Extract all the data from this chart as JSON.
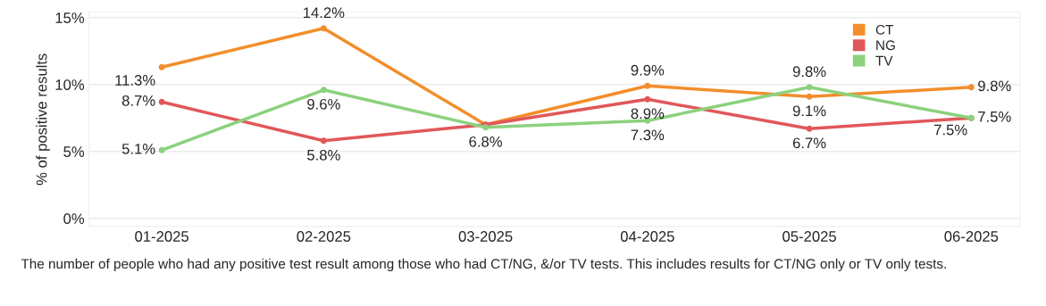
{
  "chart_data": {
    "type": "line",
    "ylabel": "% of positive results",
    "categories": [
      "01-2025",
      "02-2025",
      "03-2025",
      "04-2025",
      "05-2025",
      "06-2025"
    ],
    "series": [
      {
        "name": "CT",
        "color": "#f28e2b",
        "values": [
          11.3,
          14.2,
          7.0,
          9.9,
          9.1,
          9.8
        ],
        "value_labels": [
          "11.3%",
          "14.2%",
          null,
          "9.9%",
          "9.1%",
          "9.8%"
        ]
      },
      {
        "name": "NG",
        "color": "#e15759",
        "values": [
          8.7,
          5.8,
          7.0,
          8.9,
          6.7,
          7.5
        ],
        "value_labels": [
          "8.7%",
          "5.8%",
          null,
          "8.9%",
          "6.7%",
          "7.5%"
        ]
      },
      {
        "name": "TV",
        "color": "#8cd17d",
        "values": [
          5.1,
          9.6,
          6.8,
          7.3,
          9.8,
          7.5
        ],
        "value_labels": [
          "5.1%",
          "9.6%",
          "6.8%",
          "7.3%",
          "9.8%",
          "7.5%"
        ]
      }
    ],
    "ylim": [
      -0.6,
      15.4
    ],
    "yticks": [
      {
        "value": 0,
        "label": "0%"
      },
      {
        "value": 5,
        "label": "5%"
      },
      {
        "value": 10,
        "label": "10%"
      },
      {
        "value": 15,
        "label": "15%"
      }
    ],
    "grid": "y",
    "legend": "top right",
    "marker": "circle",
    "line_style": "solid",
    "annotations": [
      "The number of people who had any positive test result among those who had CT/NG, &/or TV tests. This includes results for CT/NG only or TV only tests."
    ]
  }
}
